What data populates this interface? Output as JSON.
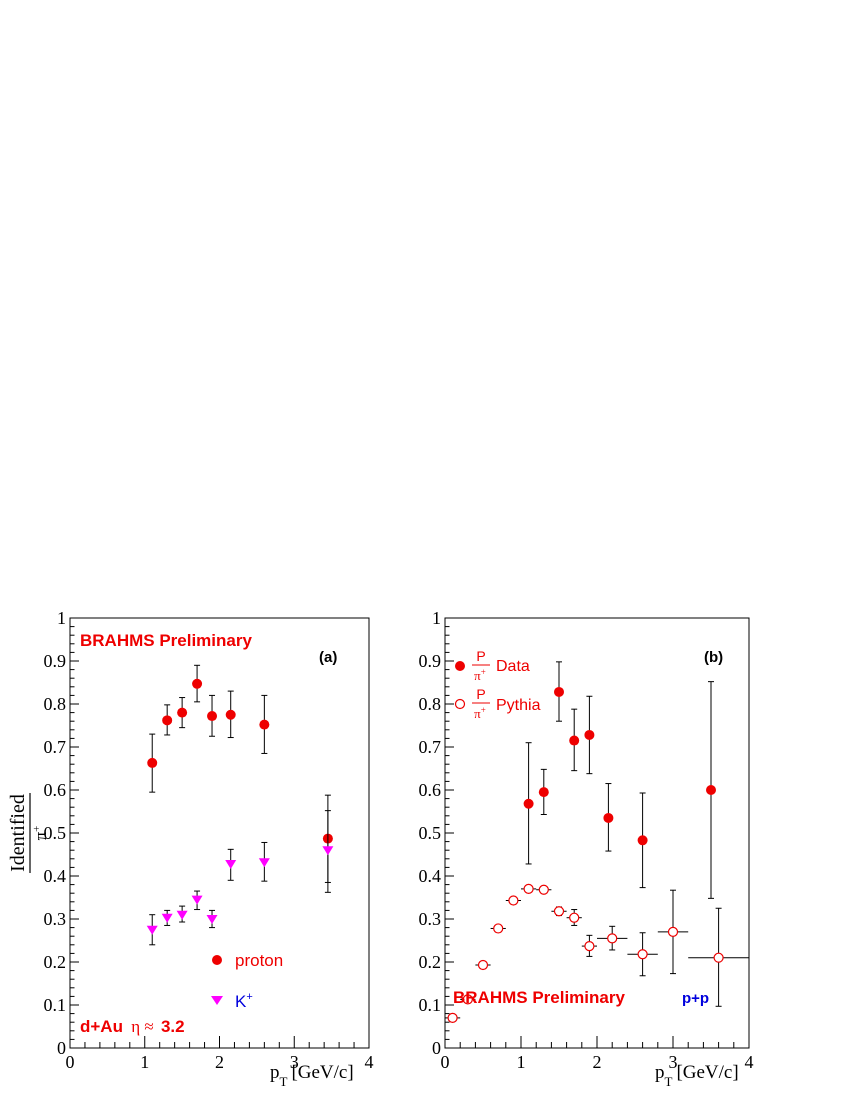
{
  "colors": {
    "red": "#ee0000",
    "magenta": "#ff00ff",
    "blue": "#0000dd",
    "black": "#000000"
  },
  "chart_data": [
    {
      "type": "scatter",
      "panel_label": "(a)",
      "xlabel": "p",
      "xlabel_sub": "T",
      "xlabel_units": "[GeV/c]",
      "ylabel": "Identified",
      "ylabel_den": "π",
      "ylabel_den_sup": "+",
      "xlim": [
        0,
        4
      ],
      "ylim": [
        0,
        1
      ],
      "xticks": [
        "0",
        "1",
        "2",
        "3",
        "4"
      ],
      "yticks": [
        "0",
        "0.1",
        "0.2",
        "0.3",
        "0.4",
        "0.5",
        "0.6",
        "0.7",
        "0.8",
        "0.9",
        "1"
      ],
      "annotations": {
        "brahms": "BRAHMS Preliminary",
        "system": "d+Au",
        "eta": "η ≈",
        "eta_value": "3.2"
      },
      "series": [
        {
          "name": "proton",
          "marker": "circle-filled",
          "color": "#ee0000",
          "points": [
            {
              "x": 1.1,
              "y": 0.663,
              "lo": 0.595,
              "hi": 0.73
            },
            {
              "x": 1.3,
              "y": 0.762,
              "lo": 0.728,
              "hi": 0.798
            },
            {
              "x": 1.5,
              "y": 0.78,
              "lo": 0.745,
              "hi": 0.815
            },
            {
              "x": 1.7,
              "y": 0.847,
              "lo": 0.805,
              "hi": 0.89
            },
            {
              "x": 1.9,
              "y": 0.772,
              "lo": 0.725,
              "hi": 0.82
            },
            {
              "x": 2.15,
              "y": 0.775,
              "lo": 0.722,
              "hi": 0.83
            },
            {
              "x": 2.6,
              "y": 0.752,
              "lo": 0.685,
              "hi": 0.82
            },
            {
              "x": 3.45,
              "y": 0.487,
              "lo": 0.385,
              "hi": 0.588
            }
          ]
        },
        {
          "name": "K",
          "name_sup": "+",
          "marker": "triangle-down-filled",
          "color": "#ff00ff",
          "points": [
            {
              "x": 1.1,
              "y": 0.275,
              "lo": 0.24,
              "hi": 0.31
            },
            {
              "x": 1.3,
              "y": 0.303,
              "lo": 0.285,
              "hi": 0.32
            },
            {
              "x": 1.5,
              "y": 0.31,
              "lo": 0.293,
              "hi": 0.33
            },
            {
              "x": 1.7,
              "y": 0.345,
              "lo": 0.322,
              "hi": 0.365
            },
            {
              "x": 1.9,
              "y": 0.3,
              "lo": 0.28,
              "hi": 0.32
            },
            {
              "x": 2.15,
              "y": 0.428,
              "lo": 0.39,
              "hi": 0.462
            },
            {
              "x": 2.6,
              "y": 0.432,
              "lo": 0.388,
              "hi": 0.478
            },
            {
              "x": 3.45,
              "y": 0.46,
              "lo": 0.362,
              "hi": 0.552
            }
          ]
        }
      ]
    },
    {
      "type": "scatter",
      "panel_label": "(b)",
      "xlabel": "p",
      "xlabel_sub": "T",
      "xlabel_units": "[GeV/c]",
      "xlim": [
        0,
        4
      ],
      "ylim": [
        0,
        1
      ],
      "xticks": [
        "0",
        "1",
        "2",
        "3",
        "4"
      ],
      "yticks": [
        "0",
        "0.1",
        "0.2",
        "0.3",
        "0.4",
        "0.5",
        "0.6",
        "0.7",
        "0.8",
        "0.9",
        "1"
      ],
      "annotations": {
        "brahms": "BRAHMS Preliminary",
        "system": "p+p"
      },
      "legend": {
        "num": "P",
        "den": "π",
        "den_sup": "+"
      },
      "series": [
        {
          "name": "Data",
          "marker": "circle-filled",
          "color": "#ee0000",
          "points": [
            {
              "x": 1.1,
              "y": 0.568,
              "lo": 0.428,
              "hi": 0.71
            },
            {
              "x": 1.3,
              "y": 0.595,
              "lo": 0.543,
              "hi": 0.648
            },
            {
              "x": 1.5,
              "y": 0.828,
              "lo": 0.76,
              "hi": 0.898
            },
            {
              "x": 1.7,
              "y": 0.715,
              "lo": 0.645,
              "hi": 0.788
            },
            {
              "x": 1.9,
              "y": 0.728,
              "lo": 0.638,
              "hi": 0.818
            },
            {
              "x": 2.15,
              "y": 0.535,
              "lo": 0.458,
              "hi": 0.615
            },
            {
              "x": 2.6,
              "y": 0.483,
              "lo": 0.373,
              "hi": 0.593
            },
            {
              "x": 3.5,
              "y": 0.6,
              "lo": 0.348,
              "hi": 0.852
            }
          ]
        },
        {
          "name": "Pythia",
          "marker": "circle-open",
          "color": "#ee0000",
          "points": [
            {
              "x": 0.1,
              "y": 0.07,
              "xlo": 0.0,
              "xhi": 0.2
            },
            {
              "x": 0.3,
              "y": 0.113,
              "xlo": 0.2,
              "xhi": 0.4
            },
            {
              "x": 0.5,
              "y": 0.193,
              "xlo": 0.4,
              "xhi": 0.6
            },
            {
              "x": 0.7,
              "y": 0.278,
              "xlo": 0.6,
              "xhi": 0.8
            },
            {
              "x": 0.9,
              "y": 0.343,
              "xlo": 0.8,
              "xhi": 1.0
            },
            {
              "x": 1.1,
              "y": 0.37,
              "xlo": 1.0,
              "xhi": 1.2
            },
            {
              "x": 1.3,
              "y": 0.368,
              "xlo": 1.2,
              "xhi": 1.4
            },
            {
              "x": 1.5,
              "y": 0.318,
              "xlo": 1.4,
              "xhi": 1.6,
              "lo": 0.308,
              "hi": 0.328
            },
            {
              "x": 1.7,
              "y": 0.303,
              "xlo": 1.6,
              "xhi": 1.8,
              "lo": 0.285,
              "hi": 0.322
            },
            {
              "x": 1.9,
              "y": 0.237,
              "xlo": 1.8,
              "xhi": 2.0,
              "lo": 0.213,
              "hi": 0.262
            },
            {
              "x": 2.2,
              "y": 0.255,
              "xlo": 2.0,
              "xhi": 2.4,
              "lo": 0.228,
              "hi": 0.283
            },
            {
              "x": 2.6,
              "y": 0.218,
              "xlo": 2.4,
              "xhi": 2.8,
              "lo": 0.168,
              "hi": 0.268
            },
            {
              "x": 3.0,
              "y": 0.27,
              "xlo": 2.8,
              "xhi": 3.2,
              "lo": 0.173,
              "hi": 0.367
            },
            {
              "x": 3.6,
              "y": 0.21,
              "xlo": 3.2,
              "xhi": 4.0,
              "lo": 0.097,
              "hi": 0.325
            }
          ]
        }
      ]
    }
  ]
}
